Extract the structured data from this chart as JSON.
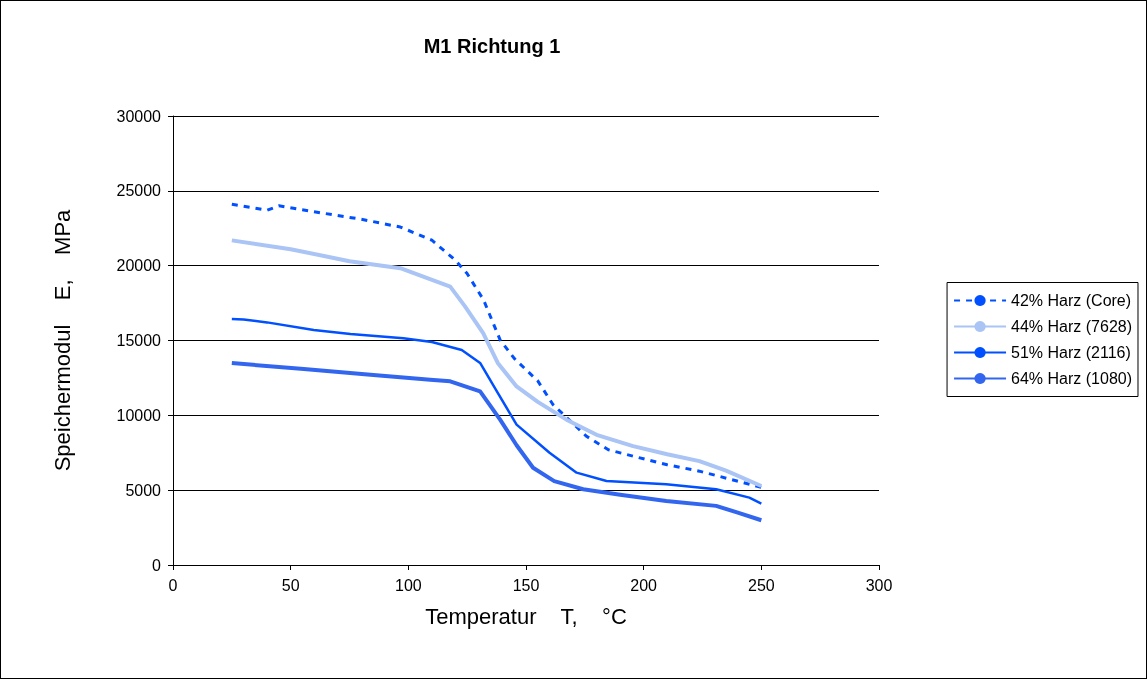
{
  "chart_data": {
    "type": "line",
    "title": "M1 Richtung 1",
    "xlabel": "Temperatur    T,    °C",
    "ylabel": "Speichermodul    E,    MPa",
    "xlim": [
      0,
      300
    ],
    "xticks": [
      0,
      50,
      100,
      150,
      200,
      250,
      300
    ],
    "ylim": [
      0,
      30000
    ],
    "yticks": [
      0,
      5000,
      10000,
      15000,
      20000,
      25000,
      30000
    ],
    "grid": "y",
    "legend": "right",
    "marker": "none",
    "series": [
      {
        "name": "42% Harz (Core)",
        "color": "#0050ff",
        "line_style": "dashed",
        "x": [
          25,
          40,
          45,
          60,
          80,
          96.6,
          110,
          120,
          124.9,
          132,
          139,
          145,
          155,
          161.5,
          175.7,
          185,
          195.5,
          210,
          223.7,
          250
        ],
        "values": [
          24100,
          23700,
          24000,
          23600,
          23100,
          22580,
          21700,
          20360,
          19490,
          17700,
          15040,
          13800,
          12300,
          10710,
          8600,
          7700,
          7270,
          6700,
          6270,
          5190
        ]
      },
      {
        "name": "44% Harz (7628)",
        "color": "#a9c4f5",
        "line_style": "solid",
        "x": [
          25,
          50,
          75,
          96.6,
          117.8,
          124,
          131.8,
          138,
          146,
          155,
          167.2,
          180,
          195.5,
          210,
          223.7,
          235,
          250
        ],
        "values": [
          21690,
          21100,
          20300,
          19830,
          18600,
          17300,
          15500,
          13500,
          11930,
          10900,
          9710,
          8700,
          7940,
          7400,
          6940,
          6300,
          5280
        ]
      },
      {
        "name": "51% Harz (2116)",
        "color": "#0050ff",
        "line_style": "solid",
        "x": [
          25,
          30,
          40,
          59.8,
          75.4,
          97.9,
          110,
          122.7,
          130.5,
          138,
          146,
          160,
          171.5,
          184.2,
          209.6,
          230.8,
          244.9,
          250
        ],
        "values": [
          16430,
          16400,
          16210,
          15700,
          15440,
          15150,
          14900,
          14370,
          13500,
          11500,
          9380,
          7500,
          6170,
          5610,
          5390,
          5060,
          4500,
          4100
        ]
      },
      {
        "name": "64% Harz (1080)",
        "color": "#3366ee",
        "line_style": "solid",
        "x": [
          25,
          55.6,
          83.9,
          109.3,
          117.8,
          130.5,
          139,
          146,
          153,
          162,
          174.3,
          190,
          209.6,
          230.8,
          240,
          250
        ],
        "values": [
          13490,
          13090,
          12710,
          12380,
          12270,
          11600,
          9710,
          8000,
          6500,
          5600,
          5060,
          4700,
          4280,
          3950,
          3500,
          2990
        ]
      }
    ]
  }
}
